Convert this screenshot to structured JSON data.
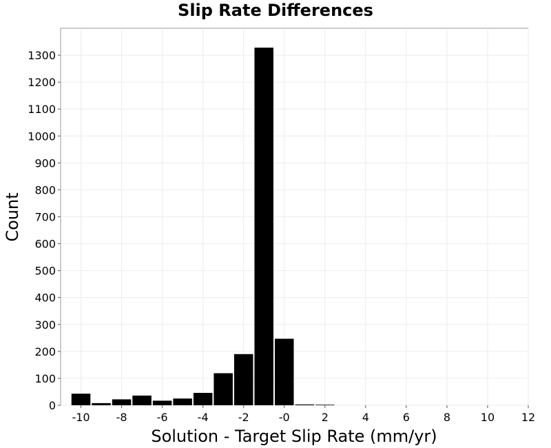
{
  "chart_data": {
    "type": "bar",
    "title": "Slip Rate Differences",
    "xlabel": "Solution - Target Slip Rate (mm/yr)",
    "ylabel": "Count",
    "xlim": [
      -11,
      12
    ],
    "ylim": [
      0,
      1400
    ],
    "xticks": [
      -10,
      -8,
      -6,
      -4,
      -2,
      0,
      2,
      4,
      6,
      8,
      10,
      12
    ],
    "xtick_labels": [
      "-10",
      "-8",
      "-6",
      "-4",
      "-2",
      "-0",
      "2",
      "4",
      "6",
      "8",
      "10",
      "12"
    ],
    "yticks": [
      0,
      100,
      200,
      300,
      400,
      500,
      600,
      700,
      800,
      900,
      1000,
      1100,
      1200,
      1300
    ],
    "bin_width": 1,
    "bins": [
      {
        "center": -10,
        "value": 43
      },
      {
        "center": -9,
        "value": 8
      },
      {
        "center": -8,
        "value": 22
      },
      {
        "center": -7,
        "value": 36
      },
      {
        "center": -6,
        "value": 17
      },
      {
        "center": -5,
        "value": 25
      },
      {
        "center": -4,
        "value": 46
      },
      {
        "center": -3,
        "value": 119
      },
      {
        "center": -2,
        "value": 190
      },
      {
        "center": -1,
        "value": 1328
      },
      {
        "center": 0,
        "value": 247
      },
      {
        "center": 1,
        "value": 3
      },
      {
        "center": 2,
        "value": 2
      }
    ],
    "bar_color": "#000000",
    "grid": true,
    "legend": "none"
  }
}
